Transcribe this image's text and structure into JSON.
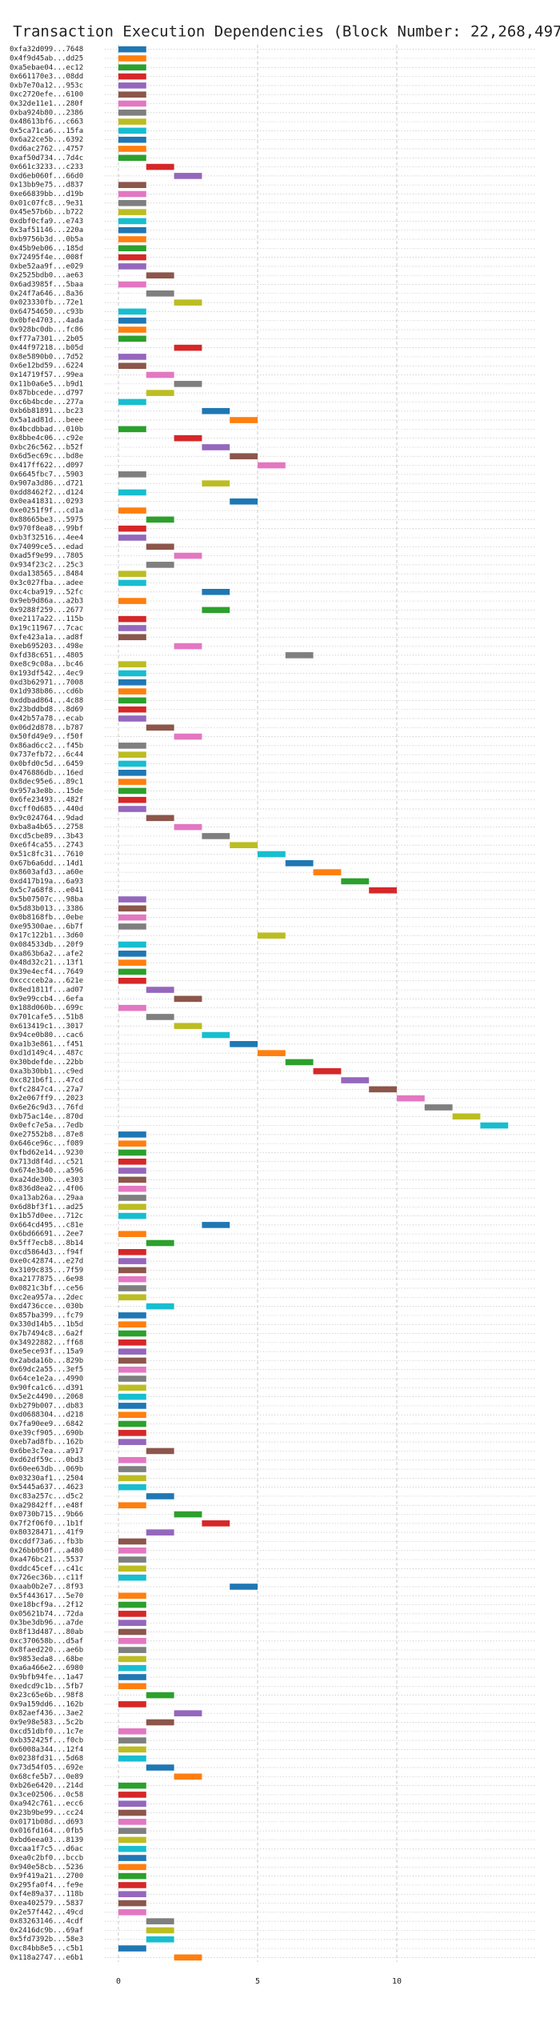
{
  "chart_data": {
    "type": "timeline",
    "title": "Transaction Execution Dependencies (Block Number: 22,268,497)",
    "categories": [
      "0xfa32d099...7648",
      "0x4f9d45ab...dd25",
      "0xa5ebae04...ec12",
      "0x661170e3...08dd",
      "0xb7e70a12...953c",
      "0xc2720efe...6100",
      "0x32de11e1...280f",
      "0xba924b80...2386",
      "0x48613bf6...c663",
      "0x5ca71ca6...15fa",
      "0x6a22ce5b...6392",
      "0xd6ac2762...4757",
      "0xaf50d734...7d4c",
      "0x661c3233...c233",
      "0xd6eb060f...66d0",
      "0x13bb9e75...d837",
      "0xe66839bb...d19b",
      "0x01c07fc8...9e31",
      "0x45e57b6b...b722",
      "0xdbf0cfa9...e743",
      "0x3af51146...220a",
      "0xb9756b3d...0b5a",
      "0x45b9eb06...185d",
      "0x72495f4e...008f",
      "0xbe52aa9f...e029",
      "0x2525bdb0...ae63",
      "0x6ad3985f...5baa",
      "0x24f7a646...8a36",
      "0x023330fb...72e1",
      "0x64754650...c93b",
      "0x0bfe4703...4ada",
      "0x928bc0db...fc86",
      "0xf77a7301...2b05",
      "0x44f97218...b05d",
      "0x8e5890b0...7d52",
      "0x6e12bd59...6224",
      "0x14719f57...99ea",
      "0x11b0a6e5...b9d1",
      "0x87bbcede...d797",
      "0xc6b4bcde...277a",
      "0xb6b81891...bc23",
      "0x5a1ad81d...beee",
      "0x4bcdbbad...010b",
      "0x8bbe4c06...c92e",
      "0xbc26c562...b52f",
      "0x6d5ec69c...bd8e",
      "0x417ff622...d097",
      "0x6645fbc7...5903",
      "0x907a3d86...d721",
      "0xdd8462f2...d124",
      "0x0ea41831...0293",
      "0xe0251f9f...cd1a",
      "0x88665be3...5975",
      "0x970f8ea8...99bf",
      "0xb3f32516...4ee4",
      "0x74099ce5...edad",
      "0xad5f9e99...7805",
      "0x934f23c2...25c3",
      "0xda138565...8484",
      "0x3c027fba...adee",
      "0xc4cba919...52fc",
      "0x9eb9d86a...a2b3",
      "0x9288f259...2677",
      "0xe2117a22...115b",
      "0x19c11967...7cac",
      "0xfe423a1a...ad8f",
      "0xeb695203...498e",
      "0xfd38c651...4805",
      "0xe8c9c08a...bc46",
      "0x193df542...4ec9",
      "0xd3b62971...7008",
      "0x1d938b86...cd6b",
      "0xddbad864...4c88",
      "0x23bddbd8...8d69",
      "0x42b57a78...ecab",
      "0x06d2d878...b787",
      "0x50fd49e9...f50f",
      "0x86ad6cc2...f45b",
      "0x737efb72...6c44",
      "0x0bfd0c5d...6459",
      "0x476886db...16ed",
      "0x8dec95e6...89c1",
      "0x957a3e8b...15de",
      "0x6fe23493...482f",
      "0xcff0d685...440d",
      "0x9c024764...9dad",
      "0xba8a4b65...2758",
      "0xcd5cbe89...3b43",
      "0xe6f4ca55...2743",
      "0x51c8fc31...7610",
      "0x67b6a6dd...14d1",
      "0x8603afd3...a60e",
      "0xd417b19a...6a93",
      "0x5c7a68f8...e041",
      "0x5b07507c...98ba",
      "0x5d83b013...3386",
      "0x0b8168fb...0ebe",
      "0xe95300ae...6b7f",
      "0x17c122b1...3d60",
      "0x084533db...20f9",
      "0xa863b6a2...afe2",
      "0x48d32c21...13f1",
      "0x39e4ecf4...7649",
      "0xcccceb2a...621e",
      "0x8ed1811f...ad07",
      "0x9e99ccb4...6efa",
      "0x188d060b...699c",
      "0x701cafe5...51b8",
      "0x613419c1...3017",
      "0x94ce0b80...cac6",
      "0xa1b3e861...f451",
      "0xd1d149c4...487c",
      "0x30bdefde...22bb",
      "0xa3b30bb1...c9ed",
      "0xc821b6f1...47cd",
      "0xfc2847c4...27a7",
      "0x2e067ff9...2023",
      "0x6e26c9d3...76fd",
      "0xb75ac14e...870d",
      "0x0efc7e5a...7edb",
      "0xe27552b8...87e8",
      "0x646ce96c...f089",
      "0xfbd62e14...9230",
      "0x713d8f4d...c521",
      "0x674e3b40...a596",
      "0xa24de30b...e303",
      "0x836d8ea2...4f06",
      "0xa13ab26a...29aa",
      "0x6d8bf3f1...ad25",
      "0x1b57d0ee...712c",
      "0x664cd495...c81e",
      "0x6bd66691...2ee7",
      "0x5ff7ecb8...8b14",
      "0xcd5864d3...f94f",
      "0xe0c42874...e27d",
      "0x3109c835...7f59",
      "0xa2177875...6e98",
      "0x0821c3bf...ce56",
      "0xc2ea957a...2dec",
      "0xd4736cce...030b",
      "0x857ba399...fc79",
      "0x330d14b5...1b5d",
      "0x7b7494c8...6a2f",
      "0x34922882...ff68",
      "0xe5ece93f...15a9",
      "0x2abda16b...829b",
      "0x69dc2a55...3ef5",
      "0x64ce1e2a...4990",
      "0x90fca1c6...d391",
      "0x5e2c4490...2068",
      "0xb279b007...db83",
      "0xd0688304...d218",
      "0x7fa90ee9...6842",
      "0xe39cf905...690b",
      "0xeb7ad8fb...162b",
      "0x6be3c7ea...a917",
      "0xd62df59c...0bd3",
      "0x60ee63db...069b",
      "0x03230af1...2504",
      "0x5445a637...4623",
      "0xc83a257c...d5c2",
      "0xa29842ff...e48f",
      "0x0730b715...9b66",
      "0x7f2f06f0...1b1f",
      "0x80328471...41f9",
      "0xcddf73a6...fb3b",
      "0x26bb050f...a480",
      "0xa476bc21...5537",
      "0xddc45cef...c41c",
      "0x726ec36b...c11f",
      "0xaab0b2e7...8f93",
      "0x5f443617...5e70",
      "0xe18bcf9a...2f12",
      "0x05621b74...72da",
      "0x3be3db96...a7de",
      "0x8f13d487...80ab",
      "0xc370658b...d5af",
      "0x8faed220...ae6b",
      "0x9853eda8...68be",
      "0xa6a466e2...6980",
      "0x9bfb94fe...1a47",
      "0xedcd9c1b...5fb7",
      "0x23c65e6b...98f8",
      "0x9a159dd6...162b",
      "0x82aef436...3ae2",
      "0x9e98e583...5c2b",
      "0xcd51dbf0...1c7e",
      "0xb352425f...f0cb",
      "0x6008a344...12f4",
      "0x0238fd31...5d68",
      "0x73d54f05...692e",
      "0x68cfe5b7...0e89",
      "0xb26e6420...214d",
      "0x3ce02506...0c58",
      "0xa942c761...ecc6",
      "0x23b9be99...cc24",
      "0x0171b08d...d693",
      "0x016fd164...0fb5",
      "0xbd6eea03...8139",
      "0xcaa1f7c5...d6ac",
      "0xea0c2bf0...bccb",
      "0x940e58cb...5236",
      "0x9f419a21...2700",
      "0x295fa0f4...fe9e",
      "0xf4e89a37...118b",
      "0xea402579...5837",
      "0x2e57f442...49cd",
      "0x83263146...4cdf",
      "0x2416dc9b...69af",
      "0x5fd7392b...58e3",
      "0xc84bb8e5...c5b1",
      "0x118a2747...e6b1"
    ],
    "values": [
      0,
      0,
      0,
      0,
      0,
      0,
      0,
      0,
      0,
      0,
      0,
      0,
      0,
      1,
      2,
      0,
      0,
      0,
      0,
      0,
      0,
      0,
      0,
      0,
      0,
      1,
      0,
      1,
      2,
      0,
      0,
      0,
      0,
      2,
      0,
      0,
      1,
      2,
      1,
      0,
      3,
      4,
      0,
      2,
      3,
      4,
      5,
      0,
      3,
      0,
      4,
      0,
      1,
      0,
      0,
      1,
      2,
      1,
      0,
      0,
      3,
      0,
      3,
      0,
      0,
      0,
      2,
      6,
      0,
      0,
      0,
      0,
      0,
      0,
      0,
      1,
      2,
      0,
      0,
      0,
      0,
      0,
      0,
      0,
      0,
      1,
      2,
      3,
      4,
      5,
      6,
      7,
      8,
      9,
      0,
      0,
      0,
      0,
      5,
      0,
      0,
      0,
      0,
      0,
      1,
      2,
      0,
      1,
      2,
      3,
      4,
      5,
      6,
      7,
      8,
      9,
      10,
      11,
      12,
      13,
      0,
      0,
      0,
      0,
      0,
      0,
      0,
      0,
      0,
      0,
      3,
      0,
      1,
      0,
      0,
      0,
      0,
      0,
      0,
      1,
      0,
      0,
      0,
      0,
      0,
      0,
      0,
      0,
      0,
      0,
      0,
      0,
      0,
      0,
      0,
      1,
      0,
      0,
      0,
      0,
      1,
      0,
      2,
      3,
      1,
      0,
      0,
      0,
      0,
      0,
      4,
      0,
      0,
      0,
      0,
      0,
      0,
      0,
      0,
      0,
      0,
      0,
      1,
      0,
      2,
      1,
      0,
      0,
      0,
      0,
      1,
      2,
      0,
      0,
      0,
      0,
      0,
      0,
      0,
      0,
      0,
      0,
      0,
      0,
      0,
      0,
      0,
      1,
      1,
      1,
      0,
      2
    ],
    "duration": 1,
    "colors": [
      "#1f77b4",
      "#ff7f0e",
      "#2ca02c",
      "#d62728",
      "#9467bd",
      "#8c564b",
      "#e377c2",
      "#7f7f7f",
      "#bcbd22",
      "#17becf"
    ],
    "xlim": [
      -0.5,
      15
    ],
    "xticks": [
      0,
      5,
      10
    ],
    "grid": true
  }
}
